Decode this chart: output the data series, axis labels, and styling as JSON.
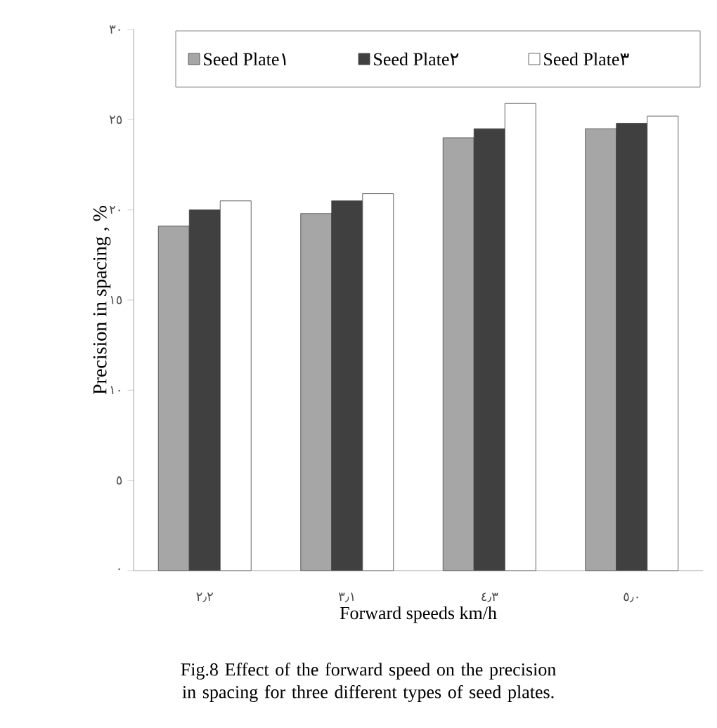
{
  "chart_data": {
    "type": "bar",
    "xlabel": "Forward speeds km/h",
    "ylabel": "Precision in spacing , %",
    "annotations": [
      "Fig.8 Effect of the forward speed on the precision in spacing for three different types of seed plates."
    ],
    "categories": [
      "٢٫٢",
      "٣٫١",
      "٤٫٣",
      "٥٫٠"
    ],
    "series": [
      {
        "name": "Seed Plate١",
        "color": "#a6a6a6",
        "values": [
          19.1,
          19.8,
          24.0,
          24.5
        ]
      },
      {
        "name": "Seed Plate٢",
        "color": "#404040",
        "values": [
          20.0,
          20.5,
          24.5,
          24.8
        ]
      },
      {
        "name": "Seed Plate٣",
        "color": "#ffffff",
        "values": [
          20.5,
          20.9,
          25.9,
          25.2
        ]
      }
    ],
    "ylim": [
      0,
      30
    ],
    "yticks": [
      {
        "value": 0,
        "label": "٠"
      },
      {
        "value": 5,
        "label": "٥"
      },
      {
        "value": 10,
        "label": "١٠"
      },
      {
        "value": 15,
        "label": "١٥"
      },
      {
        "value": 20,
        "label": "٢٠"
      },
      {
        "value": 25,
        "label": "٢٥"
      },
      {
        "value": 30,
        "label": "٣٠"
      }
    ],
    "legend": "top"
  }
}
